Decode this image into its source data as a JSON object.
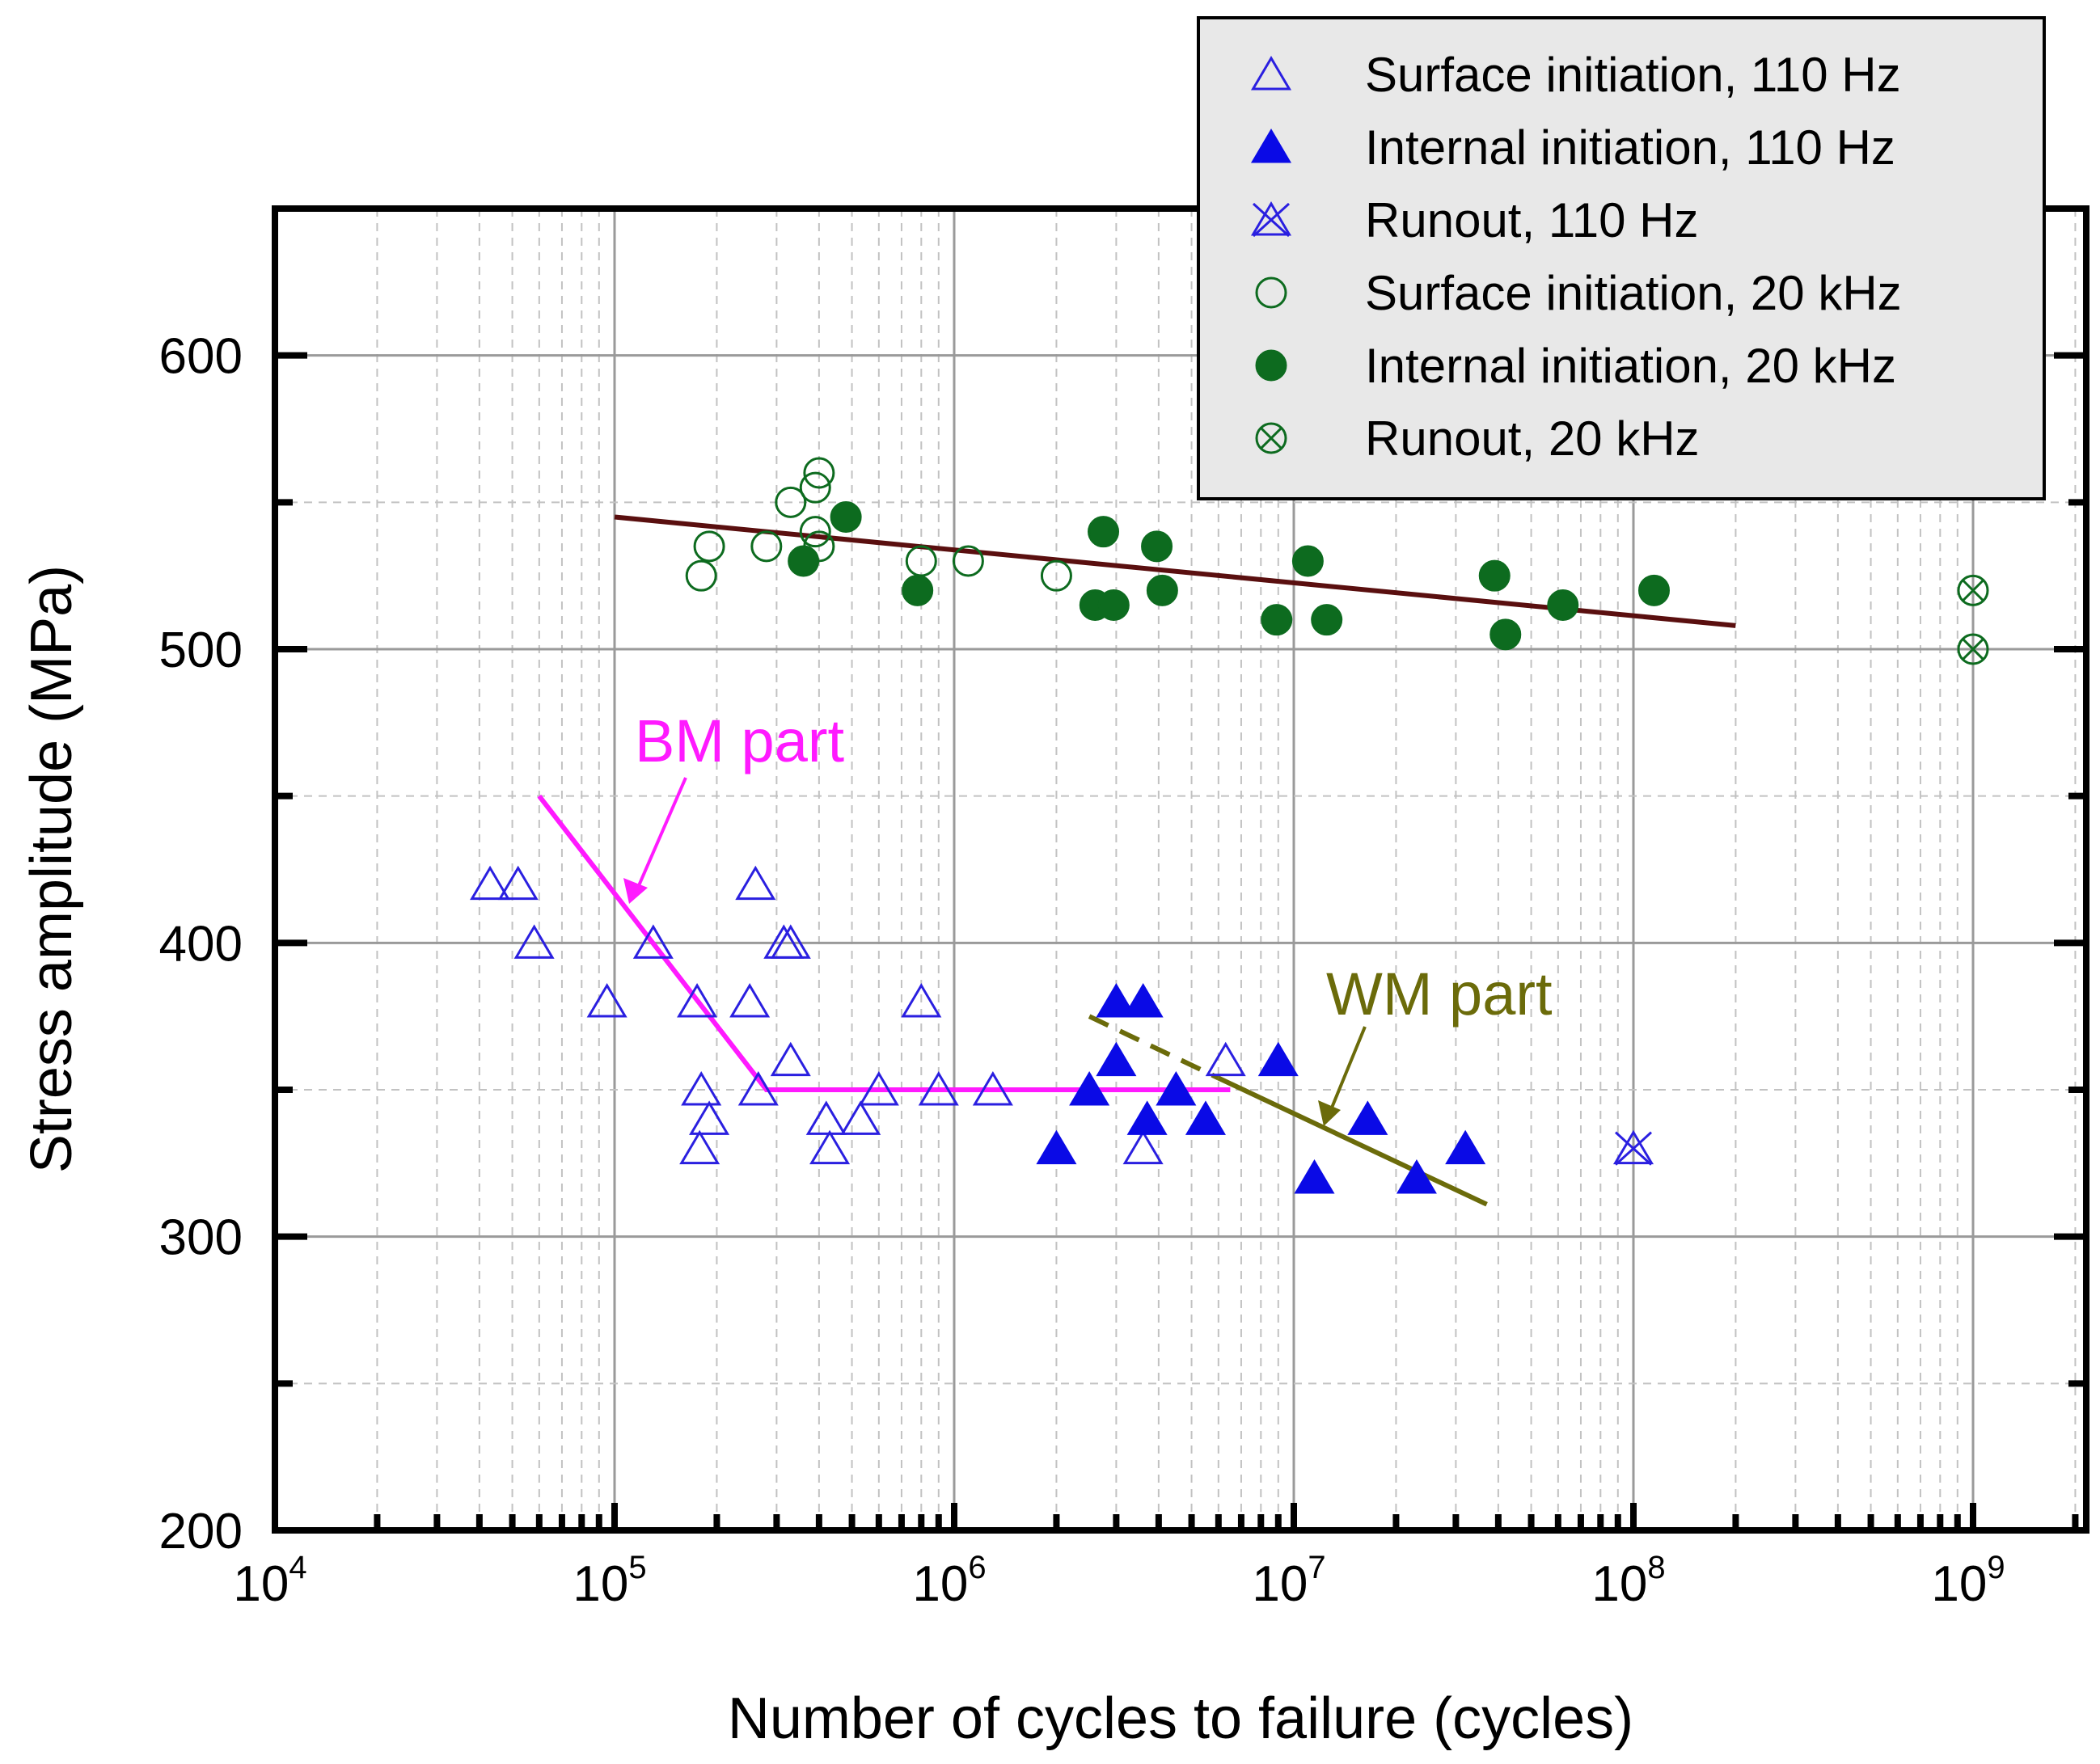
{
  "chart_data": {
    "type": "scatter",
    "xscale": "log",
    "xlabel": "Number of cycles to failure (cycles)",
    "ylabel": "Stress amplitude (MPa)",
    "xlim": [
      10000,
      2000000000
    ],
    "ylim": [
      200,
      650
    ],
    "grid": true,
    "legend_position": "top-right",
    "x_ticks": [
      {
        "base": "10",
        "exp": "4",
        "value": 10000
      },
      {
        "base": "10",
        "exp": "5",
        "value": 100000
      },
      {
        "base": "10",
        "exp": "6",
        "value": 1000000
      },
      {
        "base": "10",
        "exp": "7",
        "value": 10000000
      },
      {
        "base": "10",
        "exp": "8",
        "value": 100000000
      },
      {
        "base": "10",
        "exp": "9",
        "value": 1000000000
      }
    ],
    "y_ticks": [
      {
        "label": "200",
        "value": 200
      },
      {
        "label": "300",
        "value": 300
      },
      {
        "label": "400",
        "value": 400
      },
      {
        "label": "500",
        "value": 500
      },
      {
        "label": "600",
        "value": 600
      }
    ],
    "series": [
      {
        "name": "Surface initiation, 110 Hz",
        "marker": "triangle-open",
        "color": "#2a1fe0",
        "points": [
          [
            43000,
            420
          ],
          [
            52000,
            420
          ],
          [
            58000,
            400
          ],
          [
            95000,
            380
          ],
          [
            130000,
            400
          ],
          [
            175000,
            380
          ],
          [
            180000,
            350
          ],
          [
            178000,
            330
          ],
          [
            190000,
            340
          ],
          [
            250000,
            380
          ],
          [
            260000,
            420
          ],
          [
            265000,
            350
          ],
          [
            315000,
            400
          ],
          [
            330000,
            400
          ],
          [
            330000,
            360
          ],
          [
            420000,
            340
          ],
          [
            430000,
            330
          ],
          [
            530000,
            340
          ],
          [
            600000,
            350
          ],
          [
            800000,
            380
          ],
          [
            900000,
            350
          ],
          [
            1300000,
            350
          ],
          [
            3600000,
            330
          ],
          [
            6300000,
            360
          ]
        ]
      },
      {
        "name": "Internal initiation, 110 Hz",
        "marker": "triangle-filled",
        "color": "#0a0ae6",
        "points": [
          [
            2000000,
            330
          ],
          [
            2500000,
            350
          ],
          [
            3000000,
            360
          ],
          [
            3000000,
            380
          ],
          [
            3600000,
            380
          ],
          [
            3700000,
            340
          ],
          [
            4500000,
            350
          ],
          [
            5500000,
            340
          ],
          [
            9000000,
            360
          ],
          [
            11500000,
            320
          ],
          [
            16500000,
            340
          ],
          [
            23000000,
            320
          ],
          [
            32000000,
            330
          ]
        ]
      },
      {
        "name": "Runout, 110 Hz",
        "marker": "triangle-x",
        "color": "#2a1fe0",
        "points": [
          [
            100000000,
            330
          ]
        ]
      },
      {
        "name": "Surface initiation, 20 kHz",
        "marker": "circle-open",
        "color": "#0d6b1f",
        "points": [
          [
            180000,
            525
          ],
          [
            190000,
            535
          ],
          [
            280000,
            535
          ],
          [
            330000,
            550
          ],
          [
            390000,
            555
          ],
          [
            400000,
            560
          ],
          [
            390000,
            540
          ],
          [
            400000,
            535
          ],
          [
            800000,
            530
          ],
          [
            1100000,
            530
          ],
          [
            2000000,
            525
          ]
        ]
      },
      {
        "name": "Internal initiation, 20 kHz",
        "marker": "circle-filled",
        "color": "#0d6b1f",
        "points": [
          [
            360000,
            530
          ],
          [
            480000,
            545
          ],
          [
            780000,
            520
          ],
          [
            2600000,
            515
          ],
          [
            2750000,
            540
          ],
          [
            2950000,
            515
          ],
          [
            3950000,
            535
          ],
          [
            4100000,
            520
          ],
          [
            8900000,
            510
          ],
          [
            11000000,
            530
          ],
          [
            12500000,
            510
          ],
          [
            39000000,
            525
          ],
          [
            42000000,
            505
          ],
          [
            62000000,
            515
          ],
          [
            115000000,
            520
          ]
        ]
      },
      {
        "name": "Runout, 20 kHz",
        "marker": "circle-x",
        "color": "#0d6b1f",
        "points": [
          [
            1000000000,
            520
          ],
          [
            1000000000,
            500
          ]
        ]
      }
    ],
    "fit_lines": [
      {
        "name": "20 kHz trend",
        "color": "#5a0f0f",
        "dashed": false,
        "points": [
          [
            100000,
            545
          ],
          [
            200000000,
            508
          ]
        ]
      },
      {
        "name": "BM part",
        "color": "#ff1aff",
        "dashed": false,
        "points": [
          [
            60000,
            450
          ],
          [
            280000,
            350
          ],
          [
            6500000,
            350
          ]
        ]
      },
      {
        "name": "WM part dashed",
        "color": "#6b6b0a",
        "dashed": true,
        "points": [
          [
            2500000,
            375
          ],
          [
            6000000,
            354
          ]
        ]
      },
      {
        "name": "WM part",
        "color": "#6b6b0a",
        "dashed": false,
        "points": [
          [
            6000000,
            354
          ],
          [
            37000000,
            311
          ]
        ]
      }
    ],
    "annotations": [
      {
        "text": "BM part",
        "color": "#ff1aff",
        "anchor": [
          108000,
          420
        ]
      },
      {
        "text": "WM part",
        "color": "#6b6b0a",
        "anchor": [
          10800000,
          350
        ]
      }
    ]
  }
}
